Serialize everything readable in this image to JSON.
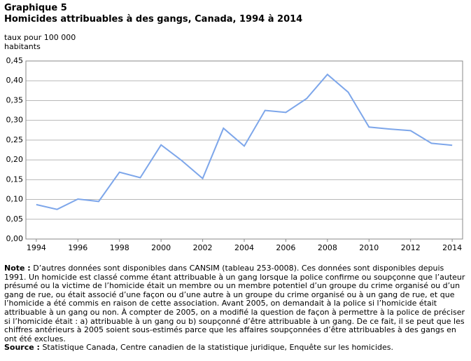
{
  "chart_data": {
    "type": "line",
    "title_label": "Graphique  5",
    "title": "Homicides attribuables à des gangs, Canada, 1994 à 2014",
    "y_label": "taux pour 100 000 habitants",
    "x": [
      1994,
      1995,
      1996,
      1997,
      1998,
      1999,
      2000,
      2001,
      2002,
      2003,
      2004,
      2005,
      2006,
      2007,
      2008,
      2009,
      2010,
      2011,
      2012,
      2013,
      2014
    ],
    "series": [
      {
        "color": "#7da6ea",
        "values": [
          0.087,
          0.075,
          0.101,
          0.095,
          0.169,
          0.155,
          0.238,
          0.198,
          0.153,
          0.28,
          0.235,
          0.325,
          0.32,
          0.355,
          0.416,
          0.371,
          0.283,
          0.278,
          0.274,
          0.242,
          0.237
        ]
      }
    ],
    "xlim": [
      1993.5,
      2014.5
    ],
    "xticks": [
      1994,
      1996,
      1998,
      2000,
      2002,
      2004,
      2006,
      2008,
      2010,
      2012,
      2014
    ],
    "ylim": [
      0,
      0.45
    ],
    "yticks": [
      {
        "value": 0,
        "label": "0,00"
      },
      {
        "value": 0.05,
        "label": "0,05"
      },
      {
        "value": 0.1,
        "label": "0,10"
      },
      {
        "value": 0.15,
        "label": "0,15"
      },
      {
        "value": 0.2,
        "label": "0,20"
      },
      {
        "value": 0.25,
        "label": "0,25"
      },
      {
        "value": 0.3,
        "label": "0,30"
      },
      {
        "value": 0.35,
        "label": "0,35"
      },
      {
        "value": 0.4,
        "label": "0,40"
      },
      {
        "value": 0.45,
        "label": "0,45"
      }
    ],
    "grid": true,
    "note_label": "Note :",
    "note": "D’autres données sont disponibles dans CANSIM (tableau 253-0008). Ces données sont disponibles depuis 1991. Un homicide est classé comme étant attribuable à un gang lorsque la police confirme ou soupçonne que l’auteur présumé ou la victime de l’homicide était un membre ou un membre potentiel d’un groupe du crime organisé ou d’un gang de rue, ou était associé d’une façon ou d’une autre à un groupe du crime organisé ou à un gang de rue, et que l’homicide a été commis en raison de cette association. Avant 2005, on demandait à la police si l’homicide était attribuable à un gang ou non. À compter de 2005, on a modifié la question de façon à permettre à la police de préciser si l’homicide était : a) attribuable à un gang ou b) soupçonné d’être attribuable à un gang. De ce fait, il se peut que les chiffres antérieurs à 2005 soient sous-estimés parce que les affaires soupçonnées d’être attribuables à des gangs en ont été exclues.",
    "source_label": "Source :",
    "source": "Statistique Canada, Centre canadien de la statistique juridique, Enquête sur les homicides."
  }
}
